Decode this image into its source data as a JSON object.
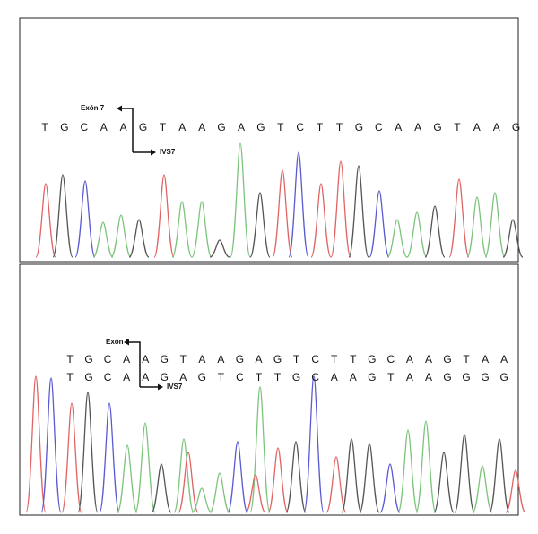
{
  "panels": [
    {
      "exon_label": "Exón 7",
      "intron_label": "IVS7",
      "sequences": [
        [
          "T",
          "G",
          "C",
          "A",
          "A",
          "G",
          "T",
          "A",
          "A",
          "G",
          "A",
          "G",
          "T",
          "C",
          "T",
          "T",
          "G",
          "C",
          "A",
          "A",
          "G",
          "T",
          "A",
          "A",
          "G"
        ]
      ]
    },
    {
      "exon_label": "Exón 7",
      "intron_label": "IVS7",
      "sequences": [
        [
          "T",
          "G",
          "C",
          "A",
          "A",
          "G",
          "T",
          "A",
          "A",
          "G",
          "A",
          "G",
          "T",
          "C",
          "T",
          "T",
          "G",
          "C",
          "A",
          "A",
          "G",
          "T",
          "A",
          "A"
        ],
        [
          "T",
          "G",
          "C",
          "A",
          "A",
          "G",
          "A",
          "G",
          "T",
          "C",
          "T",
          "T",
          "G",
          "C",
          "A",
          "A",
          "G",
          "T",
          "A",
          "A",
          "G",
          "G",
          "G",
          "G"
        ]
      ]
    }
  ]
}
